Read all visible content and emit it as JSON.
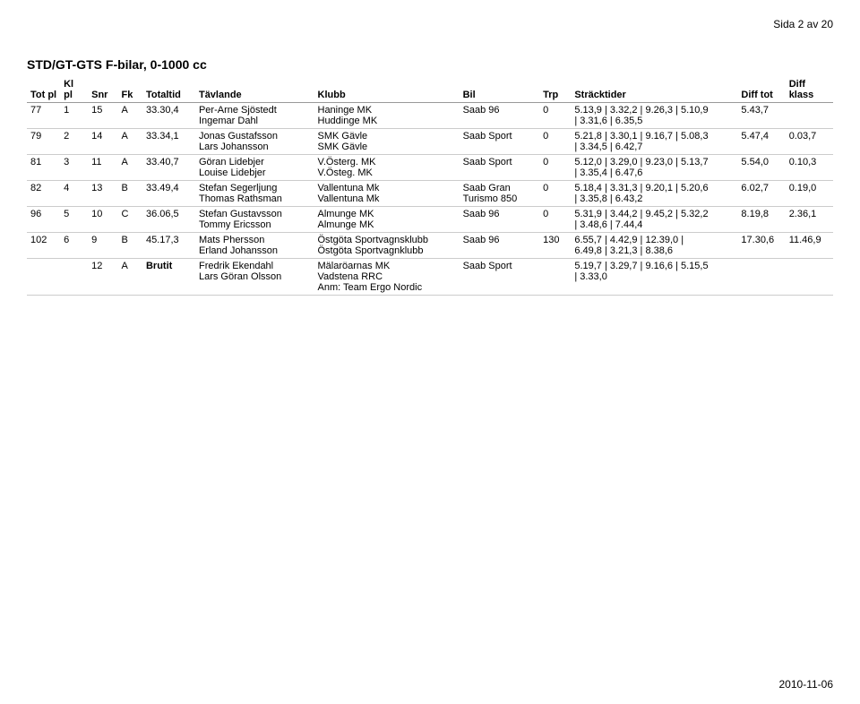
{
  "header": {
    "page_label": "Sida 2 av 20"
  },
  "footer": {
    "date": "2010-11-06"
  },
  "race_class": {
    "title": "STD/GT-GTS F-bilar, 0-1000 cc"
  },
  "columns": {
    "totpl": "Tot pl",
    "klpl": "Kl pl",
    "snr": "Snr",
    "fk": "Fk",
    "totaltid": "Totaltid",
    "tavlande": "Tävlande",
    "klubb": "Klubb",
    "bil": "Bil",
    "trp": "Trp",
    "stracktider": "Sträcktider",
    "difftot": "Diff tot",
    "diffklass": "Diff klass"
  },
  "rows": [
    {
      "totpl": "77",
      "klpl": "1",
      "snr": "15",
      "fk": "A",
      "totaltid": "33.30,4",
      "driver": "Per-Arne Sjöstedt",
      "codriver": "Ingemar Dahl",
      "club1": "Haninge MK",
      "club2": "Huddinge MK",
      "bil": "Saab 96",
      "trp": "0",
      "strack1": "5.13,9 | 3.32,2 | 9.26,3 | 5.10,9",
      "strack2": "| 3.31,6 | 6.35,5",
      "difftot": "5.43,7",
      "diffklass": ""
    },
    {
      "totpl": "79",
      "klpl": "2",
      "snr": "14",
      "fk": "A",
      "totaltid": "33.34,1",
      "driver": "Jonas Gustafsson",
      "codriver": "Lars Johansson",
      "club1": "SMK Gävle",
      "club2": "SMK Gävle",
      "bil": "Saab Sport",
      "trp": "0",
      "strack1": "5.21,8 | 3.30,1 | 9.16,7 | 5.08,3",
      "strack2": "| 3.34,5 | 6.42,7",
      "difftot": "5.47,4",
      "diffklass": "0.03,7"
    },
    {
      "totpl": "81",
      "klpl": "3",
      "snr": "11",
      "fk": "A",
      "totaltid": "33.40,7",
      "driver": "Göran Lidebjer",
      "codriver": "Louise Lidebjer",
      "club1": "V.Österg. MK",
      "club2": "V.Östeg. MK",
      "bil": "Saab Sport",
      "trp": "0",
      "strack1": "5.12,0 | 3.29,0 | 9.23,0 | 5.13,7",
      "strack2": "| 3.35,4 | 6.47,6",
      "difftot": "5.54,0",
      "diffklass": "0.10,3"
    },
    {
      "totpl": "82",
      "klpl": "4",
      "snr": "13",
      "fk": "B",
      "totaltid": "33.49,4",
      "driver": "Stefan Segerljung",
      "codriver": "Thomas Rathsman",
      "club1": "Vallentuna Mk",
      "club2": "Vallentuna Mk",
      "bil": "Saab Gran Turismo 850",
      "trp": "0",
      "strack1": "5.18,4 | 3.31,3 | 9.20,1 | 5.20,6",
      "strack2": "| 3.35,8 | 6.43,2",
      "difftot": "6.02,7",
      "diffklass": "0.19,0"
    },
    {
      "totpl": "96",
      "klpl": "5",
      "snr": "10",
      "fk": "C",
      "totaltid": "36.06,5",
      "driver": "Stefan Gustavsson",
      "codriver": "Tommy Ericsson",
      "club1": "Almunge MK",
      "club2": "Almunge MK",
      "bil": "Saab 96",
      "trp": "0",
      "strack1": "5.31,9 | 3.44,2 | 9.45,2 | 5.32,2",
      "strack2": "| 3.48,6 | 7.44,4",
      "difftot": "8.19,8",
      "diffklass": "2.36,1"
    },
    {
      "totpl": "102",
      "klpl": "6",
      "snr": "9",
      "fk": "B",
      "totaltid": "45.17,3",
      "driver": "Mats Phersson",
      "codriver": "Erland Johansson",
      "club1": "Östgöta Sportvagnsklubb",
      "club2": "Östgöta Sportvagnklubb",
      "bil": "Saab 96",
      "trp": "130",
      "strack1": "6.55,7 | 4.42,9 | 12.39,0 |",
      "strack2": "6.49,8 | 3.21,3 | 8.38,6",
      "difftot": "17.30,6",
      "diffklass": "11.46,9"
    },
    {
      "totpl": "",
      "klpl": "",
      "snr": "12",
      "fk": "A",
      "totaltid": "Brutit",
      "driver": "Fredrik Ekendahl",
      "codriver": "Lars Göran Olsson",
      "club1": "Mälaröarnas MK",
      "club2": "Vadstena RRC",
      "club3": "Anm: Team Ergo Nordic",
      "bil": "Saab Sport",
      "trp": "",
      "strack1": "5.19,7 | 3.29,7 | 9.16,6 | 5.15,5",
      "strack2": "| 3.33,0",
      "difftot": "",
      "diffklass": ""
    }
  ]
}
